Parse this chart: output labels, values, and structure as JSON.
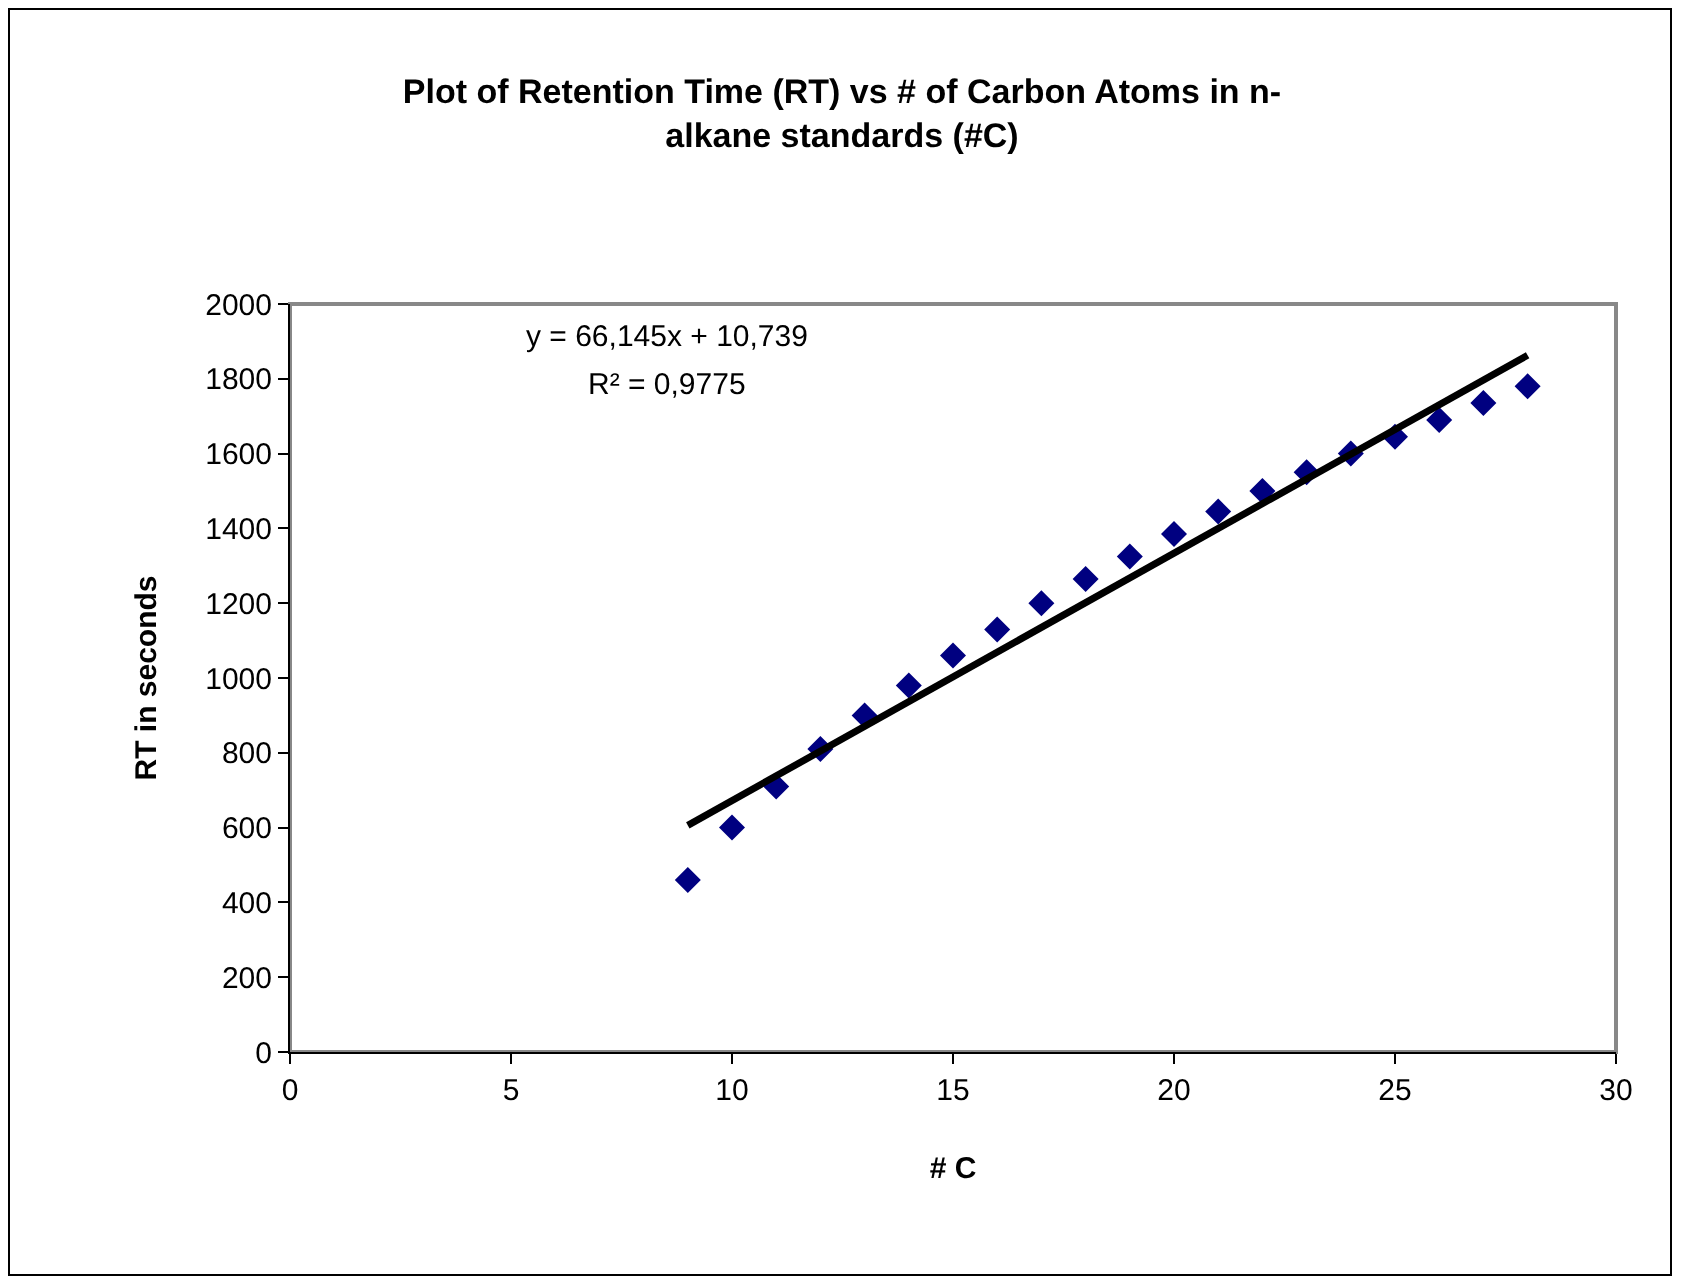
{
  "chart_data": {
    "type": "scatter",
    "title": "Plot of Retention Time (RT) vs # of Carbon Atoms in n-alkane standards (#C)",
    "xlabel": "# C",
    "ylabel": "RT in seconds",
    "annotations": [
      "y = 66,145x + 10,739",
      "R² = 0,9775"
    ],
    "x": [
      9,
      10,
      11,
      12,
      13,
      14,
      15,
      16,
      17,
      18,
      19,
      20,
      21,
      22,
      23,
      24,
      25,
      26,
      27,
      28
    ],
    "series": [
      {
        "color": "#000080",
        "marker": "diamond",
        "values": [
          460,
          600,
          710,
          810,
          900,
          980,
          1060,
          1130,
          1200,
          1265,
          1325,
          1385,
          1445,
          1500,
          1550,
          1600,
          1645,
          1690,
          1735,
          1780
        ]
      },
      {
        "type": "line",
        "color": "#000000",
        "marker": "none",
        "line_style": "solid",
        "x": [
          9,
          28
        ],
        "values": [
          606,
          1863
        ]
      }
    ],
    "xlim": [
      0,
      30
    ],
    "xticks": [
      0,
      5,
      10,
      15,
      20,
      25,
      30
    ],
    "ylim": [
      0,
      2000
    ],
    "yticks": [
      0,
      200,
      400,
      600,
      800,
      1000,
      1200,
      1400,
      1600,
      1800,
      2000
    ],
    "grid": false
  }
}
